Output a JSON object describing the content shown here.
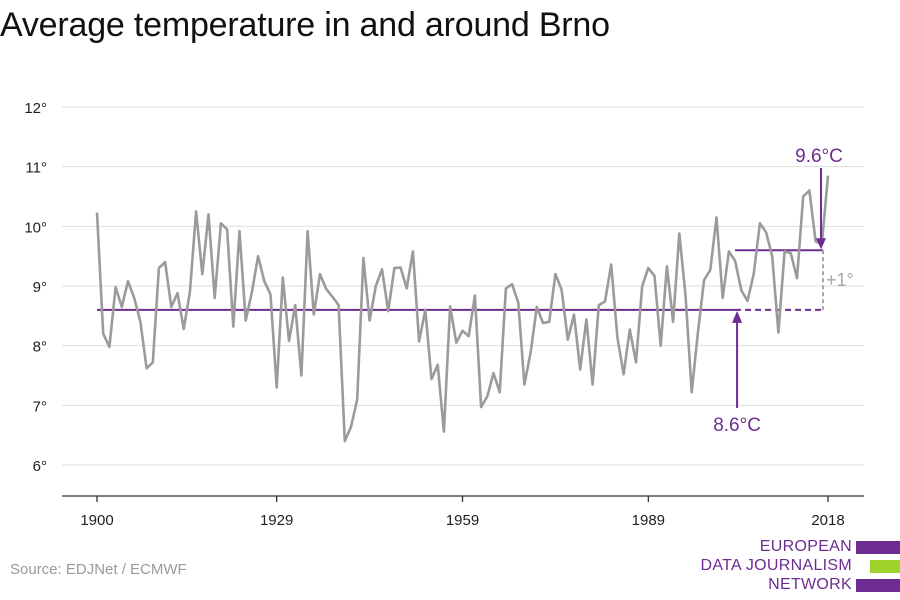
{
  "chart_data": {
    "type": "line",
    "title": "Average temperature in and around Brno",
    "xlabel": "",
    "ylabel": "",
    "xlim": [
      1900,
      2019
    ],
    "ylim": [
      5.5,
      12.5
    ],
    "x_ticks": [
      1900,
      1929,
      1959,
      1989,
      2018
    ],
    "y_ticks": [
      {
        "value": 6,
        "label": "6°"
      },
      {
        "value": 7,
        "label": "7°"
      },
      {
        "value": 8,
        "label": "8°"
      },
      {
        "value": 9,
        "label": "9°"
      },
      {
        "value": 10,
        "label": "10°"
      },
      {
        "value": 11,
        "label": "11°"
      },
      {
        "value": 12,
        "label": "12°"
      }
    ],
    "grid": true,
    "series": [
      {
        "name": "",
        "x_start": 1900,
        "x_step": 1,
        "values": [
          10.23,
          8.2,
          7.98,
          8.98,
          8.65,
          9.08,
          8.8,
          8.4,
          7.62,
          7.72,
          9.3,
          9.4,
          8.65,
          8.88,
          8.28,
          8.9,
          10.25,
          9.2,
          10.2,
          8.8,
          10.05,
          9.95,
          8.32,
          9.92,
          8.42,
          8.9,
          9.5,
          9.08,
          8.86,
          7.3,
          9.14,
          8.08,
          8.68,
          7.5,
          9.92,
          8.52,
          9.2,
          8.95,
          8.82,
          8.68,
          6.4,
          6.64,
          7.1,
          9.47,
          8.42,
          9.0,
          9.28,
          8.58,
          9.3,
          9.31,
          8.96,
          9.58,
          8.07,
          8.6,
          7.44,
          7.68,
          6.56,
          8.66,
          8.05,
          8.25,
          8.16,
          8.84,
          6.97,
          7.15,
          7.54,
          7.22,
          8.96,
          9.03,
          8.72,
          7.35,
          7.88,
          8.65,
          8.38,
          8.4,
          9.2,
          8.94,
          8.1,
          8.52,
          7.6,
          8.44,
          7.35,
          8.68,
          8.74,
          9.36,
          8.14,
          7.52,
          8.27,
          7.72,
          9.0,
          9.3,
          9.17,
          8.0,
          9.33,
          8.4,
          9.88,
          8.85,
          7.22,
          8.22,
          9.1,
          9.27,
          10.15,
          8.8,
          9.58,
          9.42,
          8.93,
          8.75,
          9.2,
          10.05,
          9.9,
          9.5,
          8.22,
          9.58,
          9.55,
          9.13,
          10.5,
          10.6,
          9.75,
          9.7,
          10.85
        ]
      }
    ],
    "annotations": {
      "baseline": {
        "value": 8.6,
        "label": "8.6°C",
        "x_from": 1900,
        "x_to": 2018,
        "solid_until": 2003
      },
      "recent": {
        "value": 9.6,
        "label": "9.6°C",
        "x_from": 2003,
        "x_to": 2018
      },
      "difference": {
        "label": "+1°"
      }
    },
    "colors": {
      "line": "#9b9b9b",
      "accent": "#6d2c91",
      "grid": "#dedede",
      "axis": "#333333",
      "diff": "#a6a6a6"
    }
  },
  "source": "Source: EDJNet / ECMWF",
  "logo": {
    "lines": [
      "EUROPEAN",
      "DATA JOURNALISM",
      "NETWORK"
    ],
    "colors": {
      "purple": "#6d2c91",
      "green": "#9dd32a"
    }
  }
}
